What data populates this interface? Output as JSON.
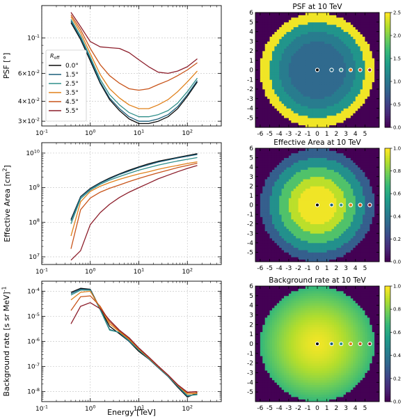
{
  "chart_data": [
    {
      "type": "line",
      "ylabel": "PSF [°]",
      "xlabel": "",
      "xscale": "log",
      "yscale": "log",
      "xlim": [
        0.1,
        500
      ],
      "ylim": [
        0.028,
        0.16
      ],
      "xticks": [
        {
          "v": 0.1,
          "label": "10^-1"
        },
        {
          "v": 1,
          "label": "10^0"
        },
        {
          "v": 10,
          "label": "10^1"
        },
        {
          "v": 100,
          "label": "10^2"
        }
      ],
      "yticks": [
        {
          "v": 0.03,
          "label": "3×10^-2"
        },
        {
          "v": 0.04,
          "label": "4×10^-2"
        },
        {
          "v": 0.06,
          "label": "6×10^-2"
        },
        {
          "v": 0.1,
          "label": "10^-1"
        }
      ],
      "grid": true,
      "legend": {
        "title": "R_off",
        "placement": "center-left"
      },
      "x": [
        0.4,
        0.63,
        1.0,
        1.6,
        2.5,
        4.0,
        6.3,
        10,
        16,
        25,
        40,
        63,
        100,
        160
      ],
      "series": [
        {
          "name": "0.0°",
          "color": "#0a0a0a",
          "values": [
            0.125,
            0.098,
            0.072,
            0.052,
            0.041,
            0.035,
            0.031,
            0.029,
            0.029,
            0.03,
            0.032,
            0.036,
            0.043,
            0.053
          ]
        },
        {
          "name": "1.5°",
          "color": "#1a5e7a",
          "values": [
            0.128,
            0.1,
            0.074,
            0.053,
            0.042,
            0.036,
            0.032,
            0.03,
            0.03,
            0.031,
            0.033,
            0.037,
            0.044,
            0.054
          ]
        },
        {
          "name": "2.5°",
          "color": "#2f8f8a",
          "values": [
            0.131,
            0.103,
            0.076,
            0.055,
            0.044,
            0.038,
            0.034,
            0.032,
            0.032,
            0.033,
            0.035,
            0.039,
            0.046,
            0.056
          ]
        },
        {
          "name": "3.5°",
          "color": "#e0801a",
          "values": [
            0.136,
            0.108,
            0.08,
            0.059,
            0.048,
            0.042,
            0.038,
            0.036,
            0.036,
            0.038,
            0.041,
            0.046,
            0.053,
            0.062
          ]
        },
        {
          "name": "4.5°",
          "color": "#c8541a",
          "values": [
            0.14,
            0.113,
            0.086,
            0.068,
            0.058,
            0.052,
            0.048,
            0.047,
            0.048,
            0.051,
            0.054,
            0.058,
            0.063,
            0.07
          ]
        },
        {
          "name": "5.5°",
          "color": "#8c1d2a",
          "values": [
            0.145,
            0.118,
            0.095,
            0.088,
            0.087,
            0.086,
            0.081,
            0.073,
            0.066,
            0.061,
            0.06,
            0.062,
            0.066,
            0.074
          ]
        }
      ]
    },
    {
      "type": "line",
      "ylabel": "Effective Area [cm^2]",
      "xlabel": "",
      "xscale": "log",
      "yscale": "log",
      "xlim": [
        0.1,
        500
      ],
      "ylim": [
        6000000.0,
        20000000000.0
      ],
      "xticks": [
        {
          "v": 0.1,
          "label": "10^-1"
        },
        {
          "v": 1,
          "label": "10^0"
        },
        {
          "v": 10,
          "label": "10^1"
        },
        {
          "v": 100,
          "label": "10^2"
        }
      ],
      "yticks": [
        {
          "v": 10000000.0,
          "label": "10^7"
        },
        {
          "v": 100000000.0,
          "label": "10^8"
        },
        {
          "v": 1000000000.0,
          "label": "10^9"
        },
        {
          "v": 10000000000.0,
          "label": "10^10"
        }
      ],
      "grid": true,
      "x": [
        0.4,
        0.63,
        1.0,
        1.6,
        2.5,
        4.0,
        6.3,
        10,
        16,
        25,
        40,
        63,
        100,
        160
      ],
      "series": [
        {
          "name": "0.0°",
          "color": "#0a0a0a",
          "values": [
            120000000.0,
            550000000.0,
            950000000.0,
            1400000000.0,
            1900000000.0,
            2500000000.0,
            3200000000.0,
            4000000000.0,
            4900000000.0,
            5800000000.0,
            6600000000.0,
            7500000000.0,
            8500000000.0,
            9600000000.0
          ]
        },
        {
          "name": "1.5°",
          "color": "#1a5e7a",
          "values": [
            110000000.0,
            530000000.0,
            920000000.0,
            1350000000.0,
            1800000000.0,
            2400000000.0,
            3000000000.0,
            3800000000.0,
            4600000000.0,
            5500000000.0,
            6300000000.0,
            7200000000.0,
            8100000000.0,
            9100000000.0
          ]
        },
        {
          "name": "2.5°",
          "color": "#2f8f8a",
          "values": [
            90000000.0,
            480000000.0,
            850000000.0,
            1250000000.0,
            1650000000.0,
            2100000000.0,
            2600000000.0,
            3200000000.0,
            3800000000.0,
            4500000000.0,
            5200000000.0,
            5900000000.0,
            6600000000.0,
            7400000000.0
          ]
        },
        {
          "name": "3.5°",
          "color": "#e0801a",
          "values": [
            40000000.0,
            390000000.0,
            780000000.0,
            1100000000.0,
            1400000000.0,
            1750000000.0,
            2100000000.0,
            2500000000.0,
            2900000000.0,
            3400000000.0,
            3900000000.0,
            4400000000.0,
            5000000000.0,
            5600000000.0
          ]
        },
        {
          "name": "4.5°",
          "color": "#c8541a",
          "values": [
            17000000.0,
            230000000.0,
            500000000.0,
            740000000.0,
            960000000.0,
            1200000000.0,
            1500000000.0,
            1850000000.0,
            2250000000.0,
            2700000000.0,
            3200000000.0,
            3800000000.0,
            4400000000.0,
            5100000000.0
          ]
        },
        {
          "name": "5.5°",
          "color": "#8c1d2a",
          "values": [
            8000000.0,
            15000000.0,
            85000000.0,
            190000000.0,
            330000000.0,
            520000000.0,
            740000000.0,
            1000000000.0,
            1350000000.0,
            1800000000.0,
            2300000000.0,
            2900000000.0,
            3600000000.0,
            4400000000.0
          ]
        }
      ]
    },
    {
      "type": "line",
      "ylabel": "Background rate [s sr MeV]^-1",
      "xlabel": "Energy [TeV]",
      "xscale": "log",
      "yscale": "log",
      "xlim": [
        0.1,
        500
      ],
      "ylim": [
        4e-09,
        0.00025
      ],
      "xticks": [
        {
          "v": 0.1,
          "label": "10^-1"
        },
        {
          "v": 1,
          "label": "10^0"
        },
        {
          "v": 10,
          "label": "10^1"
        },
        {
          "v": 100,
          "label": "10^2"
        }
      ],
      "yticks": [
        {
          "v": 1e-08,
          "label": "10^-8"
        },
        {
          "v": 1e-07,
          "label": "10^-7"
        },
        {
          "v": 1e-06,
          "label": "10^-6"
        },
        {
          "v": 1e-05,
          "label": "10^-5"
        },
        {
          "v": 0.0001,
          "label": "10^-4"
        }
      ],
      "grid": true,
      "x": [
        0.4,
        0.63,
        1.0,
        1.6,
        2.5,
        4.0,
        6.3,
        10,
        16,
        25,
        40,
        63,
        100,
        160
      ],
      "series": [
        {
          "name": "0.0°",
          "color": "#0a0a0a",
          "values": [
            9e-05,
            0.00013,
            0.00012,
            2e-05,
            4e-06,
            2e-06,
            1e-06,
            4e-07,
            2e-07,
            9e-08,
            4e-08,
            1.5e-08,
            6e-09,
            9e-09
          ]
        },
        {
          "name": "1.5°",
          "color": "#1a5e7a",
          "values": [
            8e-05,
            0.00012,
            0.000115,
            1.9e-05,
            3e-06,
            2.2e-06,
            1e-06,
            4.5e-07,
            2e-07,
            9e-08,
            4e-08,
            1.6e-08,
            6.5e-09,
            8e-09
          ]
        },
        {
          "name": "2.5°",
          "color": "#2f8f8a",
          "values": [
            7e-05,
            0.00011,
            0.00011,
            1.8e-05,
            2.8e-06,
            2.3e-06,
            1.1e-06,
            4.5e-07,
            2.1e-07,
            9.5e-08,
            4.2e-08,
            1.7e-08,
            7e-09,
            7.5e-09
          ]
        },
        {
          "name": "3.5°",
          "color": "#e0801a",
          "values": [
            4.5e-05,
            9e-05,
            0.0001,
            2.2e-05,
            5e-06,
            2.4e-06,
            1.2e-06,
            5e-07,
            2.2e-07,
            1e-07,
            4.5e-08,
            1.8e-08,
            8e-09,
            8.5e-09
          ]
        },
        {
          "name": "4.5°",
          "color": "#c8541a",
          "values": [
            1.7e-05,
            6e-05,
            6.5e-05,
            2.5e-05,
            6e-06,
            2.6e-06,
            1.3e-06,
            5.2e-07,
            2.3e-07,
            1e-07,
            4.5e-08,
            1.8e-08,
            9e-09,
            9.5e-09
          ]
        },
        {
          "name": "5.5°",
          "color": "#8c1d2a",
          "values": [
            5e-06,
            2.5e-05,
            3.5e-05,
            2e-05,
            7e-06,
            2.8e-06,
            1.4e-06,
            5.5e-07,
            2.4e-07,
            1.05e-07,
            4.6e-08,
            1.9e-08,
            9.5e-09,
            1e-08
          ]
        }
      ]
    },
    {
      "type": "heatmap",
      "title": "PSF at 10 TeV",
      "colormap": "viridis",
      "xlim": [
        -6.5,
        6.5
      ],
      "ylim": [
        -6.0,
        6.0
      ],
      "xticks": [
        "-6",
        "-5",
        "-4",
        "-3",
        "-2",
        "-1",
        "0",
        "1",
        "2",
        "3",
        "4",
        "5"
      ],
      "yticks": [
        "-5",
        "-4",
        "-3",
        "-2",
        "-1",
        "0",
        "1",
        "2",
        "3",
        "4",
        "5",
        "6"
      ],
      "colorbar": {
        "min": 0.0,
        "max": 2.5,
        "ticks": [
          "0.0",
          "0.5",
          "1.0",
          "1.5",
          "2.0",
          "2.5"
        ]
      },
      "field": {
        "kind": "rings",
        "outer_radius_deg": 6.0,
        "outside_value": 0.0,
        "rings": [
          {
            "r_max": 3.0,
            "value": 0.85
          },
          {
            "r_max": 4.0,
            "value": 1.05
          },
          {
            "r_max": 5.0,
            "value": 1.3
          },
          {
            "r_max": 6.0,
            "value": 2.45
          }
        ]
      },
      "markers": [
        {
          "x": 0.0,
          "color": "#0a0a0a"
        },
        {
          "x": 1.5,
          "color": "#1a5e7a"
        },
        {
          "x": 2.5,
          "color": "#2f8f8a"
        },
        {
          "x": 3.5,
          "color": "#e0801a"
        },
        {
          "x": 4.5,
          "color": "#c8541a"
        },
        {
          "x": 5.5,
          "color": "#8c1d2a"
        }
      ]
    },
    {
      "type": "heatmap",
      "title": "Effective Area at 10 TeV",
      "colormap": "viridis",
      "xlim": [
        -6.5,
        6.5
      ],
      "ylim": [
        -6.0,
        6.0
      ],
      "xticks": [
        "-6",
        "-5",
        "-4",
        "-3",
        "-2",
        "-1",
        "0",
        "1",
        "2",
        "3",
        "4",
        "5"
      ],
      "yticks": [
        "-5",
        "-4",
        "-3",
        "-2",
        "-1",
        "0",
        "1",
        "2",
        "3",
        "4",
        "5",
        "6"
      ],
      "colorbar": {
        "min": 0.0,
        "max": 1.0,
        "ticks": [
          "0.0",
          "0.2",
          "0.4",
          "0.6",
          "0.8",
          "1.0"
        ]
      },
      "field": {
        "kind": "rings",
        "outer_radius_deg": 6.0,
        "outside_value": 0.0,
        "rings": [
          {
            "r_max": 2.0,
            "value": 0.98
          },
          {
            "r_max": 3.0,
            "value": 0.9
          },
          {
            "r_max": 4.0,
            "value": 0.72
          },
          {
            "r_max": 5.0,
            "value": 0.5
          },
          {
            "r_max": 6.0,
            "value": 0.3
          }
        ]
      },
      "markers": [
        {
          "x": 0.0,
          "color": "#0a0a0a"
        },
        {
          "x": 1.5,
          "color": "#1a5e7a"
        },
        {
          "x": 2.5,
          "color": "#2f8f8a"
        },
        {
          "x": 3.5,
          "color": "#e0801a"
        },
        {
          "x": 4.5,
          "color": "#c8541a"
        },
        {
          "x": 5.5,
          "color": "#8c1d2a"
        }
      ]
    },
    {
      "type": "heatmap",
      "title": "Background rate at 10 TeV",
      "colormap": "viridis",
      "xlim": [
        -6.5,
        6.5
      ],
      "ylim": [
        -6.0,
        6.0
      ],
      "xticks": [
        "-6",
        "-5",
        "-4",
        "-3",
        "-2",
        "-1",
        "0",
        "1",
        "2",
        "3",
        "4",
        "5"
      ],
      "yticks": [
        "-5",
        "-4",
        "-3",
        "-2",
        "-1",
        "0",
        "1",
        "2",
        "3",
        "4",
        "5",
        "6"
      ],
      "colorbar": {
        "min": 0.0,
        "max": 1.0,
        "ticks": [
          "0.0",
          "0.2",
          "0.4",
          "0.6",
          "0.8",
          "1.0"
        ]
      },
      "field": {
        "kind": "smooth",
        "outer_radius_deg": 6.0,
        "outside_value": 0.0,
        "center_value": 0.98,
        "edge_value": 0.66
      },
      "markers": [
        {
          "x": 0.0,
          "color": "#0a0a0a"
        },
        {
          "x": 1.5,
          "color": "#1a5e7a"
        },
        {
          "x": 2.5,
          "color": "#2f8f8a"
        },
        {
          "x": 3.5,
          "color": "#e0801a"
        },
        {
          "x": 4.5,
          "color": "#c8541a"
        },
        {
          "x": 5.5,
          "color": "#8c1d2a"
        }
      ]
    }
  ]
}
